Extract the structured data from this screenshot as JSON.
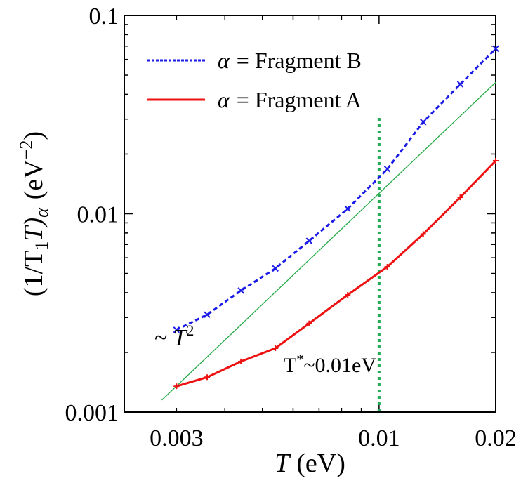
{
  "chart_data": {
    "type": "line",
    "title": "",
    "xlabel_symbol": "T",
    "xlabel_unit": "(eV)",
    "ylabel_main": "(1/T",
    "ylabel_sub1": "1",
    "ylabel_mid": "T)",
    "ylabel_subalpha": "α",
    "ylabel_unit": "(eV",
    "ylabel_exp": "−2",
    "ylabel_close": ")",
    "xscale": "log",
    "yscale": "log",
    "xlim": [
      0.0022,
      0.02
    ],
    "ylim": [
      0.001,
      0.1
    ],
    "xticks": [
      {
        "value": 0.003,
        "label": "0.003"
      },
      {
        "value": 0.01,
        "label": "0.01"
      },
      {
        "value": 0.02,
        "label": "0.02"
      }
    ],
    "yticks": [
      {
        "value": 0.001,
        "label": "0.001"
      },
      {
        "value": 0.01,
        "label": "0.01"
      },
      {
        "value": 0.1,
        "label": "0.1"
      }
    ],
    "series": [
      {
        "name": "α = Fragment B",
        "legend_symbol": "α",
        "legend_text": "= Fragment B",
        "color": "#1a1ae6",
        "linestyle": "dotted",
        "marker": "x",
        "x": [
          0.003,
          0.0036,
          0.0044,
          0.0054,
          0.0066,
          0.0083,
          0.0105,
          0.013,
          0.0162,
          0.02
        ],
        "y": [
          0.0026,
          0.0031,
          0.0041,
          0.0053,
          0.0073,
          0.0106,
          0.0168,
          0.029,
          0.045,
          0.068
        ]
      },
      {
        "name": "α = Fragment A",
        "legend_symbol": "α",
        "legend_text": "= Fragment A",
        "color": "#ee1111",
        "linestyle": "solid",
        "marker": "+",
        "x": [
          0.003,
          0.0036,
          0.0044,
          0.0054,
          0.0066,
          0.0083,
          0.0105,
          0.013,
          0.0162,
          0.02
        ],
        "y": [
          0.00135,
          0.0015,
          0.0018,
          0.0021,
          0.0028,
          0.0039,
          0.0054,
          0.0079,
          0.0121,
          0.0185
        ]
      }
    ],
    "reference_line": {
      "label_prefix": "~",
      "label_symbol": "T",
      "label_exp": "2",
      "color": "#22aa44",
      "x": [
        0.00275,
        0.02
      ],
      "y": [
        0.00115,
        0.046
      ]
    },
    "vertical_marker": {
      "x": 0.01,
      "color": "#22aa55",
      "label": "T",
      "label_sup": "*",
      "label_rest": "~0.01eV"
    }
  }
}
